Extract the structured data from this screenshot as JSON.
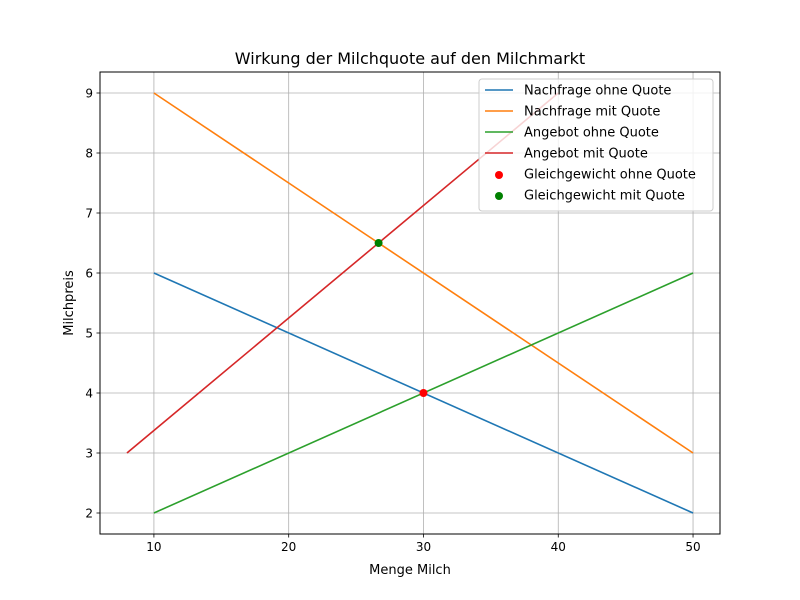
{
  "chart_data": {
    "type": "line",
    "title": "Wirkung der Milchquote auf den Milchmarkt",
    "xlabel": "Menge Milch",
    "ylabel": "Milchpreis",
    "xlim": [
      6,
      52
    ],
    "ylim": [
      1.65,
      9.35
    ],
    "xticks": [
      10,
      20,
      30,
      40,
      50
    ],
    "yticks": [
      2,
      3,
      4,
      5,
      6,
      7,
      8,
      9
    ],
    "grid": true,
    "legend_position": "top-right",
    "series": [
      {
        "name": "Nachfrage ohne Quote",
        "color": "#1f77b4",
        "x": [
          10,
          50
        ],
        "y": [
          6,
          2
        ]
      },
      {
        "name": "Nachfrage mit Quote",
        "color": "#ff7f0e",
        "x": [
          10,
          50
        ],
        "y": [
          9,
          3
        ]
      },
      {
        "name": "Angebot ohne Quote",
        "color": "#2ca02c",
        "x": [
          10,
          50
        ],
        "y": [
          2,
          6
        ]
      },
      {
        "name": "Angebot mit Quote",
        "color": "#d62728",
        "x": [
          8,
          40
        ],
        "y": [
          3,
          9
        ]
      }
    ],
    "points": [
      {
        "name": "Gleichgewicht ohne Quote",
        "color": "#ff0000",
        "x": 30,
        "y": 4
      },
      {
        "name": "Gleichgewicht mit Quote",
        "color": "#008000",
        "x": 26.67,
        "y": 6.5
      }
    ]
  }
}
